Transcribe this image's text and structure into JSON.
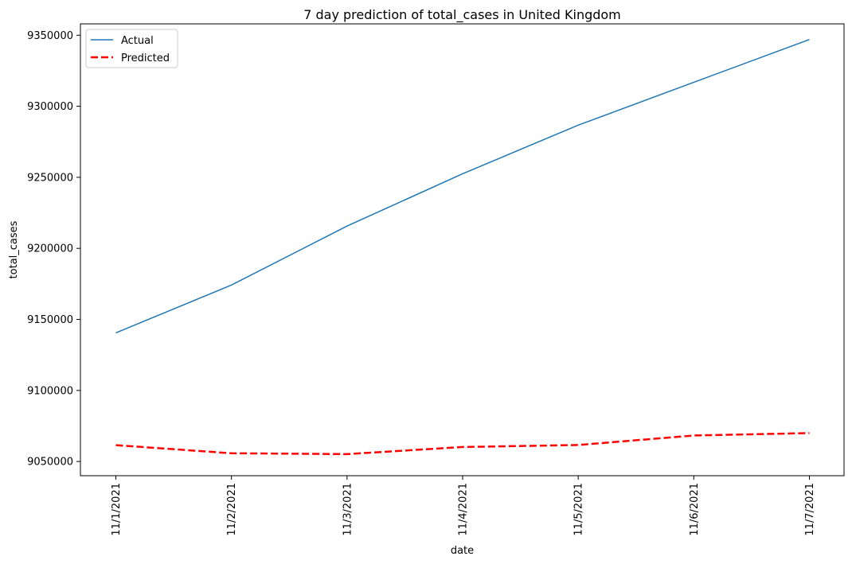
{
  "chart_data": {
    "type": "line",
    "title": "7 day prediction of total_cases in United Kingdom",
    "xlabel": "date",
    "ylabel": "total_cases",
    "categories": [
      "11/1/2021",
      "11/2/2021",
      "11/3/2021",
      "11/4/2021",
      "11/5/2021",
      "11/6/2021",
      "11/7/2021"
    ],
    "ylim": [
      9040000,
      9358000
    ],
    "yticks": [
      9050000,
      9100000,
      9150000,
      9200000,
      9250000,
      9300000,
      9350000
    ],
    "ytick_labels": [
      "9050000",
      "9100000",
      "9150000",
      "9200000",
      "9250000",
      "9300000",
      "9350000"
    ],
    "grid": false,
    "legend_position": "upper-left",
    "series": [
      {
        "name": "Actual",
        "color": "#1f77b4",
        "style": "solid",
        "values": [
          9140500,
          9174200,
          9215700,
          9252500,
          9286700,
          9316900,
          9347000
        ]
      },
      {
        "name": "Predicted",
        "color": "#ff0000",
        "style": "dashed",
        "values": [
          9061500,
          9055800,
          9055200,
          9060200,
          9061600,
          9068300,
          9070000
        ]
      }
    ]
  }
}
